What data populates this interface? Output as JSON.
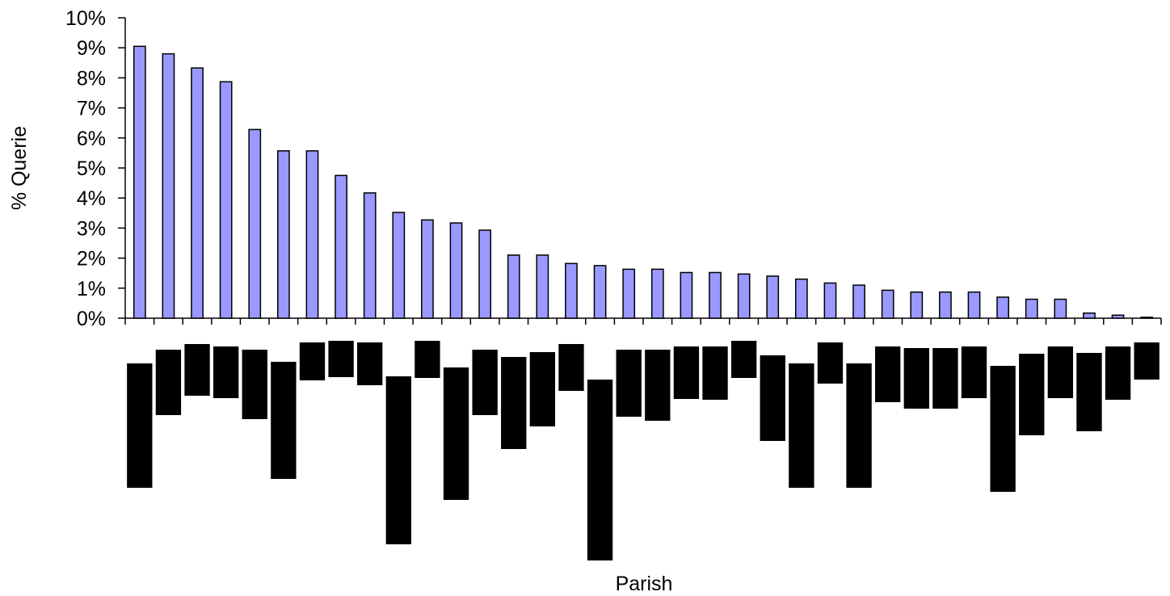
{
  "chart_data": {
    "type": "bar",
    "xlabel": "Parish",
    "ylabel": "% Querie",
    "ylim": [
      0,
      10
    ],
    "y_ticks": [
      0,
      1,
      2,
      3,
      4,
      5,
      6,
      7,
      8,
      9,
      10
    ],
    "y_tick_labels": [
      "0%",
      "1%",
      "2%",
      "3%",
      "4%",
      "5%",
      "6%",
      "7%",
      "8%",
      "9%",
      "10%"
    ],
    "grid": false,
    "values": [
      9.05,
      8.8,
      8.33,
      7.87,
      6.28,
      5.57,
      5.57,
      4.75,
      4.17,
      3.52,
      3.27,
      3.17,
      2.93,
      2.1,
      2.1,
      1.82,
      1.75,
      1.63,
      1.63,
      1.52,
      1.52,
      1.47,
      1.4,
      1.3,
      1.17,
      1.1,
      0.93,
      0.87,
      0.87,
      0.87,
      0.7,
      0.63,
      0.63,
      0.17,
      0.1,
      0.03
    ],
    "bar_color": "#9999ff",
    "redacted_label_color": "#000000"
  }
}
